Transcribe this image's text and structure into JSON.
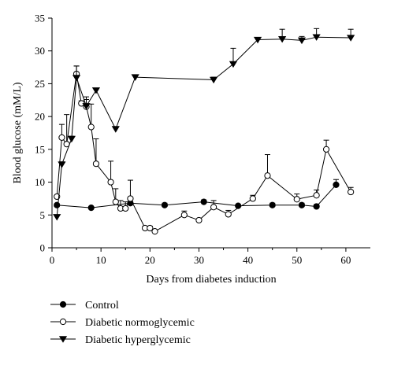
{
  "chart_data": {
    "type": "line",
    "xlabel": "Days from diabetes induction",
    "ylabel": "Blood glucose (mM/L)",
    "xlim": [
      0,
      65
    ],
    "ylim": [
      0,
      35
    ],
    "xticks": [
      0,
      10,
      20,
      30,
      40,
      50,
      60
    ],
    "yticks": [
      0,
      5,
      10,
      15,
      20,
      25,
      30,
      35
    ],
    "grid": false,
    "legend_position": "bottom-left",
    "series": [
      {
        "name": "Control",
        "marker": "filled-circle",
        "x": [
          1,
          8,
          16,
          23,
          31,
          38,
          45,
          51,
          54,
          58
        ],
        "y": [
          6.5,
          6.1,
          6.8,
          6.5,
          7.0,
          6.4,
          6.5,
          6.5,
          6.3,
          9.6
        ],
        "err": [
          0.2,
          0.2,
          0.2,
          0.3,
          0.3,
          0.2,
          0.3,
          0.3,
          0.3,
          0.8
        ]
      },
      {
        "name": "Diabetic normoglycemic",
        "marker": "open-circle",
        "x": [
          1,
          2,
          3,
          5,
          6,
          7,
          8,
          9,
          12,
          13,
          14,
          15,
          16,
          19,
          20,
          21,
          27,
          30,
          33,
          36,
          41,
          44,
          50,
          54,
          56,
          61
        ],
        "y": [
          7.8,
          16.8,
          15.8,
          26.5,
          22.0,
          21.5,
          18.4,
          12.8,
          10.0,
          7.0,
          6.0,
          6.0,
          7.5,
          3.0,
          3.0,
          2.5,
          5.0,
          4.2,
          6.2,
          5.1,
          7.5,
          11.0,
          7.4,
          8.0,
          15.0,
          8.5
        ],
        "err": [
          0,
          2,
          4.5,
          1.2,
          0.4,
          1.5,
          3.5,
          3.8,
          3.2,
          2.0,
          1.2,
          1.0,
          2.8,
          0.3,
          0.3,
          0.2,
          0.6,
          0.2,
          1.0,
          0.6,
          0.5,
          3.2,
          0.8,
          0.8,
          1.4,
          0.7
        ]
      },
      {
        "name": "Diabetic hyperglycemic",
        "marker": "filled-triangle-down",
        "x": [
          1,
          2,
          4,
          5,
          7,
          9,
          13,
          17,
          33,
          37,
          42,
          47,
          51,
          54,
          61
        ],
        "y": [
          4.7,
          12.7,
          16.6,
          25.9,
          21.6,
          24.0,
          18.1,
          26.0,
          25.6,
          28.0,
          31.7,
          31.8,
          31.6,
          32.1,
          32.0
        ],
        "err": [
          0,
          0.4,
          0.4,
          1.8,
          1.0,
          0,
          0,
          0,
          0.4,
          2.4,
          0.2,
          1.5,
          0.6,
          1.3,
          1.3
        ]
      }
    ]
  }
}
